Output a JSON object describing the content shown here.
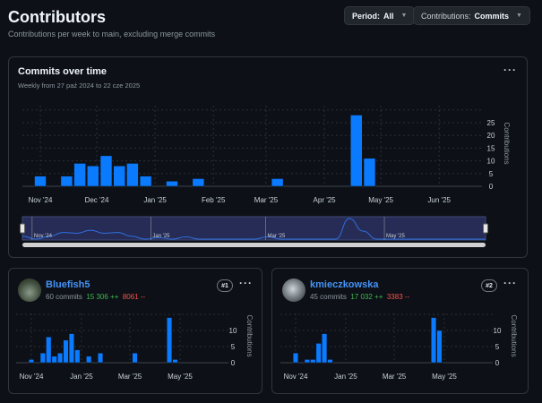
{
  "header": {
    "title": "Contributors",
    "subtitle": "Contributions per week to main, excluding merge commits"
  },
  "filters": {
    "period_label": "Period:",
    "period_value": "All",
    "contrib_label": "Contributions:",
    "contrib_value": "Commits"
  },
  "colors": {
    "bar": "#0a7aff",
    "background": "#0d1117",
    "border": "#30363d"
  },
  "main_chart": {
    "title": "Commits over time",
    "subtitle": "Weekly from 27 paź 2024 to 22 cze 2025",
    "menu_icon": "kebab-horizontal-icon"
  },
  "chart_data": [
    {
      "type": "bar",
      "title": "Commits over time",
      "ylabel": "Contributions",
      "ylim": [
        0,
        30
      ],
      "yticks": [
        0,
        5,
        10,
        15,
        20,
        25
      ],
      "xticks": [
        "Nov '24",
        "Dec '24",
        "Jan '25",
        "Feb '25",
        "Mar '25",
        "Apr '25",
        "May '25",
        "Jun '25"
      ],
      "x_start": "2024-10-27",
      "x_end": "2025-06-22",
      "grid": true,
      "x": [
        "2024-10-27",
        "2024-11-10",
        "2024-11-17",
        "2024-11-24",
        "2024-12-01",
        "2024-12-08",
        "2024-12-15",
        "2024-12-22",
        "2025-01-05",
        "2025-01-19",
        "2025-03-02",
        "2025-04-13",
        "2025-04-20"
      ],
      "values": [
        4,
        4,
        9,
        8,
        12,
        8,
        9,
        4,
        2,
        3,
        3,
        28,
        11
      ],
      "navigator_labels": [
        "Nov '24",
        "Jan '25",
        "Mar '25",
        "May '25"
      ]
    },
    {
      "type": "bar",
      "ylabel": "Contributions",
      "ylim": [
        0,
        15
      ],
      "yticks": [
        0,
        5,
        10
      ],
      "xticks": [
        "Nov '24",
        "Jan '25",
        "Mar '25",
        "May '25"
      ],
      "grid": true,
      "x": [
        "2024-10-27",
        "2024-11-10",
        "2024-11-17",
        "2024-11-24",
        "2024-12-01",
        "2024-12-08",
        "2024-12-15",
        "2024-12-22",
        "2025-01-05",
        "2025-01-19",
        "2025-03-02",
        "2025-04-13",
        "2025-04-20"
      ],
      "values": [
        1,
        3,
        8,
        2,
        3,
        7,
        9,
        4,
        2,
        3,
        3,
        14,
        1
      ]
    },
    {
      "type": "bar",
      "ylabel": "Contributions",
      "ylim": [
        0,
        15
      ],
      "yticks": [
        0,
        5,
        10
      ],
      "xticks": [
        "Nov '24",
        "Jan '25",
        "Mar '25",
        "May '25"
      ],
      "grid": true,
      "x": [
        "2024-10-27",
        "2024-11-10",
        "2024-11-17",
        "2024-11-24",
        "2024-12-01",
        "2024-12-08",
        "2025-04-13",
        "2025-04-20"
      ],
      "values": [
        3,
        1,
        1,
        6,
        9,
        1,
        14,
        10
      ]
    }
  ],
  "contributors": [
    {
      "name": "Bluefish5",
      "commits": "60 commits",
      "additions": "15 306 ++",
      "deletions": "8061 --",
      "rank": "#1"
    },
    {
      "name": "kmieczkowska",
      "commits": "45 commits",
      "additions": "17 032 ++",
      "deletions": "3383 --",
      "rank": "#2"
    }
  ]
}
